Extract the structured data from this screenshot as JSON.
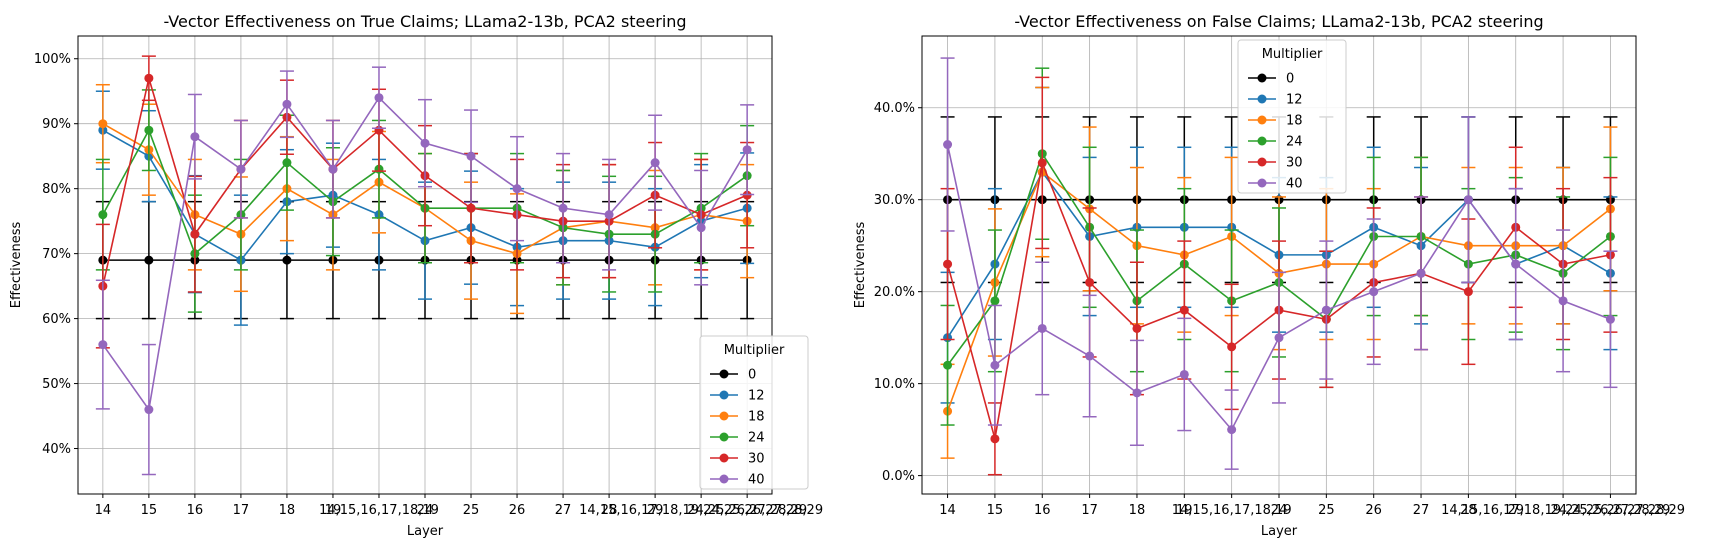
{
  "chart_data": [
    {
      "type": "line",
      "title": "-Vector Effectiveness on True Claims; LLama2-13b, PCA2 steering",
      "xlabel": "Layer",
      "ylabel": "Effectiveness",
      "categories": [
        "14",
        "15",
        "16",
        "17",
        "18",
        "19",
        "14,15,16,17,18,19",
        "24",
        "25",
        "26",
        "27",
        "28",
        "29",
        "14,15,16,17,18,19,24,25,26,27,28,29",
        "24,25,26,27,28,29"
      ],
      "ylim": [
        0.33,
        1.035
      ],
      "yticks": [
        0.4,
        0.5,
        0.6,
        0.7,
        0.8,
        0.9,
        1.0
      ],
      "ytick_labels": [
        "40%",
        "50%",
        "60%",
        "70%",
        "80%",
        "90%",
        "100%"
      ],
      "grid": true,
      "error_bars": true,
      "legend": {
        "title": "Multiplier",
        "placement": "lower-right"
      },
      "series": [
        {
          "name": "0",
          "color": "#000000",
          "values": [
            0.69,
            0.69,
            0.69,
            0.69,
            0.69,
            0.69,
            0.69,
            0.69,
            0.69,
            0.69,
            0.69,
            0.69,
            0.69,
            0.69,
            0.69
          ],
          "errors": [
            0.09,
            0.09,
            0.09,
            0.09,
            0.09,
            0.09,
            0.09,
            0.09,
            0.09,
            0.09,
            0.09,
            0.09,
            0.09,
            0.09,
            0.09
          ]
        },
        {
          "name": "12",
          "color": "#1f77b4",
          "values": [
            0.89,
            0.85,
            0.73,
            0.69,
            0.78,
            0.79,
            0.76,
            0.72,
            0.74,
            0.71,
            0.72,
            0.72,
            0.71,
            0.75,
            0.77
          ],
          "errors": [
            0.06,
            0.07,
            0.09,
            0.1,
            0.08,
            0.08,
            0.085,
            0.09,
            0.087,
            0.09,
            0.09,
            0.09,
            0.09,
            0.087,
            0.085
          ]
        },
        {
          "name": "18",
          "color": "#ff7f0e",
          "values": [
            0.9,
            0.86,
            0.76,
            0.73,
            0.8,
            0.76,
            0.81,
            0.77,
            0.72,
            0.7,
            0.74,
            0.75,
            0.74,
            0.76,
            0.75
          ],
          "errors": [
            0.06,
            0.07,
            0.085,
            0.088,
            0.08,
            0.085,
            0.078,
            0.084,
            0.09,
            0.092,
            0.088,
            0.087,
            0.088,
            0.085,
            0.087
          ]
        },
        {
          "name": "24",
          "color": "#2ca02c",
          "values": [
            0.76,
            0.89,
            0.7,
            0.76,
            0.84,
            0.78,
            0.83,
            0.77,
            0.77,
            0.77,
            0.74,
            0.73,
            0.73,
            0.77,
            0.82
          ],
          "errors": [
            0.085,
            0.062,
            0.09,
            0.085,
            0.073,
            0.083,
            0.075,
            0.084,
            0.084,
            0.084,
            0.088,
            0.089,
            0.089,
            0.084,
            0.077
          ]
        },
        {
          "name": "30",
          "color": "#d62728",
          "values": [
            0.65,
            0.97,
            0.73,
            0.83,
            0.91,
            0.83,
            0.89,
            0.82,
            0.77,
            0.76,
            0.75,
            0.75,
            0.79,
            0.76,
            0.79
          ],
          "errors": [
            0.095,
            0.034,
            0.089,
            0.075,
            0.057,
            0.075,
            0.063,
            0.077,
            0.084,
            0.085,
            0.087,
            0.087,
            0.081,
            0.085,
            0.081
          ]
        },
        {
          "name": "40",
          "color": "#9467bd",
          "values": [
            0.56,
            0.46,
            0.88,
            0.83,
            0.93,
            0.83,
            0.94,
            0.87,
            0.85,
            0.8,
            0.77,
            0.76,
            0.84,
            0.74,
            0.86
          ],
          "errors": [
            0.099,
            0.1,
            0.065,
            0.075,
            0.051,
            0.075,
            0.047,
            0.067,
            0.071,
            0.08,
            0.084,
            0.085,
            0.073,
            0.088,
            0.069
          ]
        }
      ]
    },
    {
      "type": "line",
      "title": "-Vector Effectiveness on False Claims; LLama2-13b, PCA2 steering",
      "xlabel": "Layer",
      "ylabel": "Effectiveness",
      "categories": [
        "14",
        "15",
        "16",
        "17",
        "18",
        "19",
        "14,15,16,17,18,19",
        "24",
        "25",
        "26",
        "27",
        "28",
        "29",
        "14,15,16,17,18,19,24,25,26,27,28,29",
        "24,25,26,27,28,29"
      ],
      "ylim": [
        -0.02,
        0.478
      ],
      "yticks": [
        0.0,
        0.1,
        0.2,
        0.3,
        0.4
      ],
      "ytick_labels": [
        "0.0%",
        "10.0%",
        "20.0%",
        "30.0%",
        "40.0%"
      ],
      "grid": true,
      "error_bars": true,
      "legend": {
        "title": "Multiplier",
        "placement": "upper-center"
      },
      "series": [
        {
          "name": "0",
          "color": "#000000",
          "values": [
            0.3,
            0.3,
            0.3,
            0.3,
            0.3,
            0.3,
            0.3,
            0.3,
            0.3,
            0.3,
            0.3,
            0.3,
            0.3,
            0.3,
            0.3
          ],
          "errors": [
            0.09,
            0.09,
            0.09,
            0.09,
            0.09,
            0.09,
            0.09,
            0.09,
            0.09,
            0.09,
            0.09,
            0.09,
            0.09,
            0.09,
            0.09
          ]
        },
        {
          "name": "12",
          "color": "#1f77b4",
          "values": [
            0.15,
            0.23,
            0.33,
            0.26,
            0.27,
            0.27,
            0.27,
            0.24,
            0.24,
            0.27,
            0.25,
            0.3,
            0.23,
            0.25,
            0.22
          ],
          "errors": [
            0.071,
            0.082,
            0.092,
            0.086,
            0.087,
            0.087,
            0.087,
            0.084,
            0.084,
            0.087,
            0.085,
            0.09,
            0.082,
            0.085,
            0.083
          ]
        },
        {
          "name": "18",
          "color": "#ff7f0e",
          "values": [
            0.07,
            0.21,
            0.33,
            0.29,
            0.25,
            0.24,
            0.26,
            0.22,
            0.23,
            0.23,
            0.26,
            0.25,
            0.25,
            0.25,
            0.29
          ],
          "errors": [
            0.051,
            0.08,
            0.092,
            0.089,
            0.085,
            0.084,
            0.086,
            0.083,
            0.082,
            0.082,
            0.086,
            0.085,
            0.085,
            0.085,
            0.089
          ]
        },
        {
          "name": "24",
          "color": "#2ca02c",
          "values": [
            0.12,
            0.19,
            0.35,
            0.27,
            0.19,
            0.23,
            0.19,
            0.21,
            0.17,
            0.26,
            0.26,
            0.23,
            0.24,
            0.22,
            0.26
          ],
          "errors": [
            0.065,
            0.077,
            0.093,
            0.087,
            0.077,
            0.082,
            0.077,
            0.081,
            0.074,
            0.086,
            0.086,
            0.082,
            0.084,
            0.083,
            0.086
          ]
        },
        {
          "name": "30",
          "color": "#d62728",
          "values": [
            0.23,
            0.04,
            0.34,
            0.21,
            0.16,
            0.18,
            0.14,
            0.18,
            0.17,
            0.21,
            0.22,
            0.2,
            0.27,
            0.23,
            0.24
          ],
          "errors": [
            0.082,
            0.039,
            0.093,
            0.081,
            0.072,
            0.075,
            0.068,
            0.075,
            0.074,
            0.081,
            0.083,
            0.079,
            0.087,
            0.082,
            0.084
          ]
        },
        {
          "name": "40",
          "color": "#9467bd",
          "values": [
            0.36,
            0.12,
            0.16,
            0.13,
            0.09,
            0.11,
            0.05,
            0.15,
            0.18,
            0.2,
            0.22,
            0.3,
            0.23,
            0.19,
            0.17
          ],
          "errors": [
            0.094,
            0.065,
            0.072,
            0.066,
            0.057,
            0.061,
            0.043,
            0.071,
            0.075,
            0.079,
            0.083,
            0.09,
            0.082,
            0.077,
            0.074
          ]
        }
      ]
    }
  ]
}
